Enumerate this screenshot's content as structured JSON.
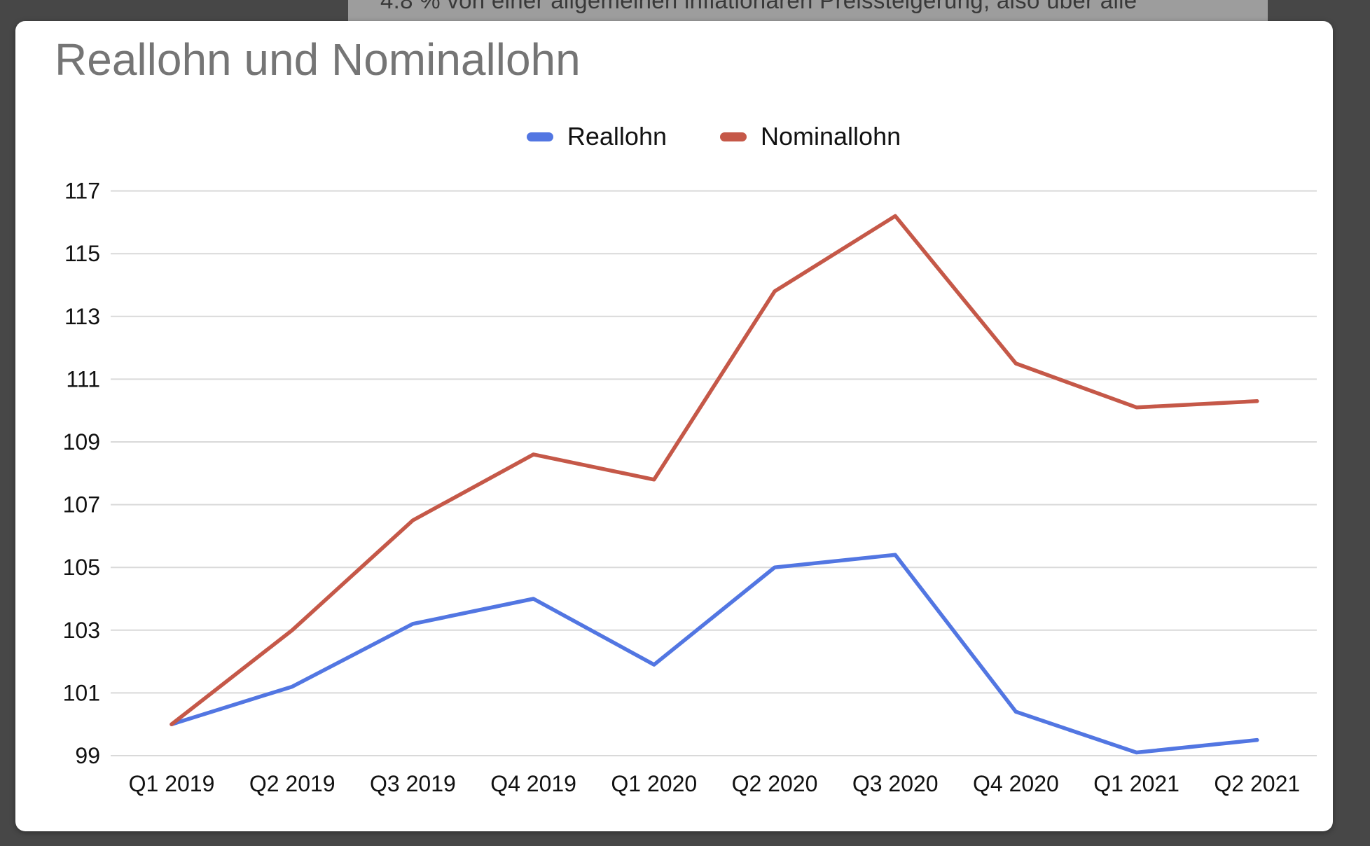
{
  "page": {
    "clipped_text": "4.8 %  von einer allgemeinen inflationären Preissteigerung, also über alle"
  },
  "chart_data": {
    "type": "line",
    "title": "Reallohn und Nominallohn",
    "categories": [
      "Q1 2019",
      "Q2 2019",
      "Q3 2019",
      "Q4 2019",
      "Q1 2020",
      "Q2 2020",
      "Q3 2020",
      "Q4 2020",
      "Q1 2021",
      "Q2 2021"
    ],
    "series": [
      {
        "name": "Reallohn",
        "color": "#5276e2",
        "values": [
          100,
          101.2,
          103.2,
          104.0,
          101.9,
          105.0,
          105.4,
          100.4,
          99.1,
          99.5
        ]
      },
      {
        "name": "Nominallohn",
        "color": "#c55848",
        "values": [
          100,
          103.0,
          106.5,
          108.6,
          107.8,
          113.8,
          116.2,
          111.5,
          110.1,
          110.3
        ]
      }
    ],
    "yticks": [
      99,
      101,
      103,
      105,
      107,
      109,
      111,
      113,
      115,
      117
    ],
    "ylim": [
      99,
      117
    ],
    "xlabel": "",
    "ylabel": "",
    "grid": true,
    "legend_position": "top",
    "styles": {
      "grid_color": "#d9d9d9",
      "axis_label_color": "#111111",
      "title_color": "#757575",
      "card_background": "#ffffff",
      "page_background": "#474747",
      "doc_strip_background": "#9d9d9d"
    }
  }
}
